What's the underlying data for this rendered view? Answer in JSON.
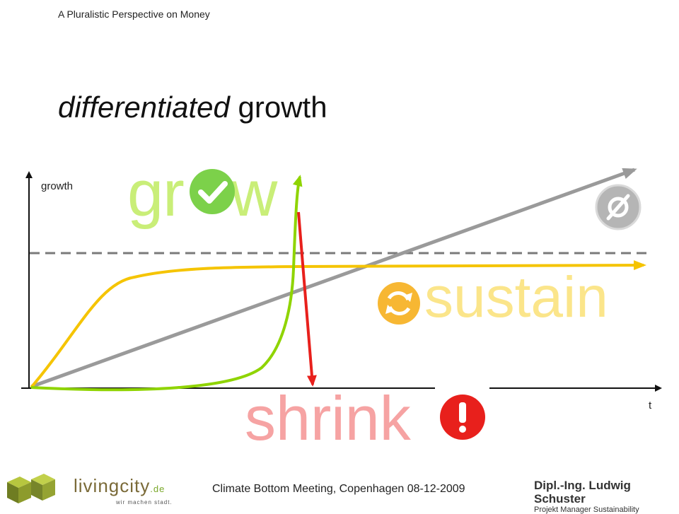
{
  "header": {
    "text": "A Pluralistic Perspective on Money"
  },
  "title": {
    "emphasis": "differentiated",
    "rest": " growth"
  },
  "diagram": {
    "y_axis_label": "growth",
    "x_axis_label": "t",
    "words": {
      "grow_prefix": "gr",
      "grow_suffix": "w",
      "sustain": "sustain",
      "shrink": "shrink"
    },
    "colors": {
      "grow": "#8fd400",
      "sustain": "#f5c400",
      "shrink": "#e8201c",
      "linear": "#9a9a9a",
      "threshold": "#7a7a7a"
    },
    "icons": {
      "grow": "check-icon",
      "sustain": "cycle-icon",
      "shrink": "exclamation-icon",
      "linear": "empty-set-icon"
    }
  },
  "footer": {
    "event": "Climate Bottom Meeting, Copenhagen 08-12-2009",
    "logo_left": {
      "brand": "livingcity",
      "tld": ".de",
      "tagline": "wir machen stadt."
    },
    "logo_right": {
      "name": "Dipl.-Ing. Ludwig Schuster",
      "role": "Projekt Manager Sustainability"
    }
  }
}
